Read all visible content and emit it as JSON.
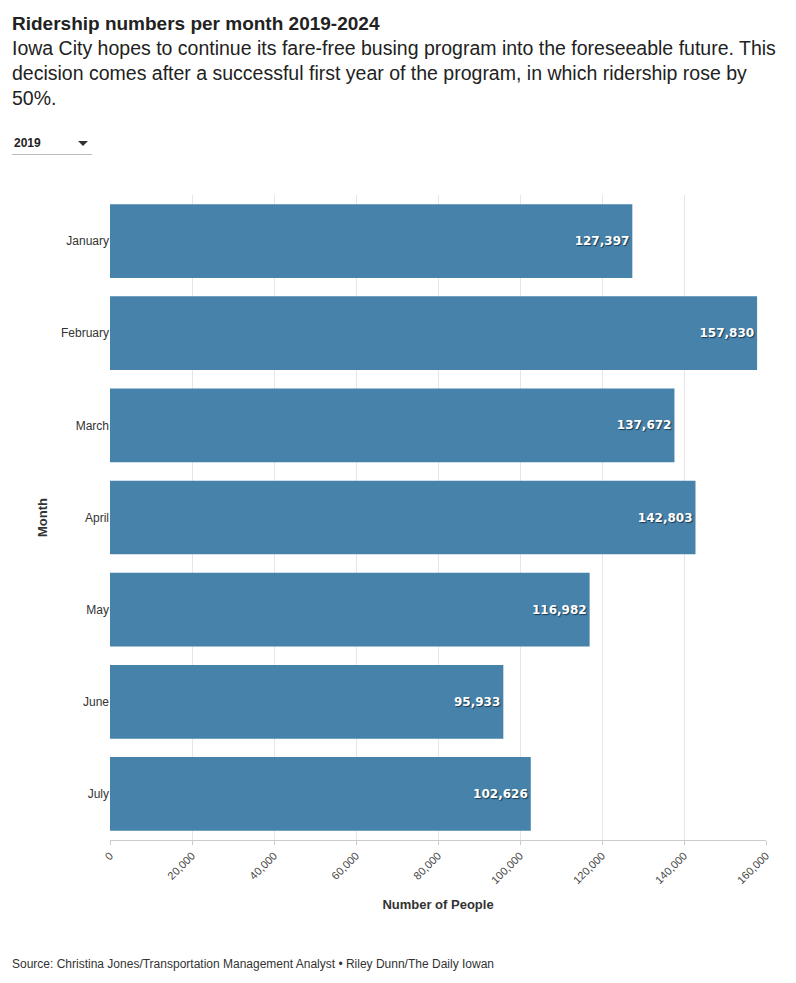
{
  "chart_data": {
    "type": "bar",
    "orientation": "horizontal",
    "title": "Ridership numbers per month 2019-2024",
    "subtitle": "Iowa City hopes to continue its fare-free busing program into the foreseeable future. This decision comes after a successful first year of the program, in which ridership rose by 50%.",
    "dropdown": "2019",
    "x_label": "Number of People",
    "y_label": "Month",
    "source": "Source: Christina Jones/Transportation Management Analyst • Riley Dunn/The Daily Iowan",
    "categories": [
      "January",
      "February",
      "March",
      "April",
      "May",
      "June",
      "July"
    ],
    "values": [
      127397,
      157830,
      137672,
      142803,
      116982,
      95933,
      102626
    ],
    "value_labels": [
      "127,397",
      "157,830",
      "137,672",
      "142,803",
      "116,982",
      "95,933",
      "102,626"
    ],
    "data_labels": true,
    "color": "#4682aa",
    "xlim": [
      0,
      160000
    ],
    "xticks": [
      0,
      {
        "value": 20000,
        "label": "20,000"
      },
      {
        "value": 40000,
        "label": "40,000"
      },
      {
        "value": 60000,
        "label": "60,000"
      },
      {
        "value": 80000,
        "label": "80,000"
      },
      {
        "value": 100000,
        "label": "100,000"
      },
      {
        "value": 120000,
        "label": "120,000"
      },
      {
        "value": 140000,
        "label": "140,000"
      },
      {
        "value": 160000,
        "label": "160,000"
      }
    ],
    "grid": true
  }
}
